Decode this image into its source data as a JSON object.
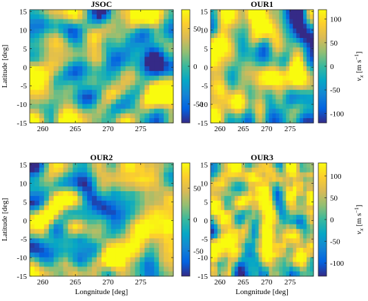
{
  "chart_data": [
    {
      "type": "heatmap",
      "title": "JSOC",
      "xlabel": "",
      "ylabel": "Latitude [deg]",
      "colorbar_label": "v_x [m s^-1]",
      "colorbar_label_parts": {
        "symbol": "v",
        "sub": "x",
        "unit": "[m s",
        "exp": "−1",
        "close": "]"
      },
      "xlim": [
        258,
        280
      ],
      "ylim": [
        -15,
        15.5
      ],
      "xticks": [
        "260",
        "265",
        "270",
        "275"
      ],
      "yticks": [
        "-15",
        "-10",
        "-5",
        "0",
        "5",
        "10",
        "15"
      ],
      "clim": [
        -75,
        75
      ],
      "cbar_ticks": [
        "-50",
        "0",
        "50"
      ],
      "pattern": {
        "seed": 1,
        "smooth": 3,
        "bias": 0.05
      }
    },
    {
      "type": "heatmap",
      "title": "OUR1",
      "xlabel": "",
      "ylabel": "",
      "colorbar_label": "v_x [m s^-1]",
      "colorbar_label_parts": {
        "symbol": "v",
        "sub": "x",
        "unit": "[m s",
        "exp": "−1",
        "close": "]"
      },
      "xlim": [
        258,
        280
      ],
      "ylim": [
        -15,
        15.5
      ],
      "xticks": [
        "260",
        "265",
        "270",
        "275"
      ],
      "yticks": [
        "-15",
        "-10",
        "-5",
        "0",
        "5",
        "10",
        "15"
      ],
      "clim": [
        -120,
        120
      ],
      "cbar_ticks": [
        "-100",
        "-50",
        "0",
        "50",
        "100"
      ],
      "pattern": {
        "seed": 1,
        "smooth": 4,
        "bias": 0.1
      }
    },
    {
      "type": "heatmap",
      "title": "OUR2",
      "xlabel": "Longnitude [deg]",
      "ylabel": "Latitude [deg]",
      "colorbar_label": "v_x [m s^-1]",
      "colorbar_label_parts": {
        "symbol": "v",
        "sub": "x",
        "unit": "[m s",
        "exp": "−1",
        "close": "]"
      },
      "xlim": [
        258,
        280
      ],
      "ylim": [
        -15,
        15.5
      ],
      "xticks": [
        "260",
        "265",
        "270",
        "275"
      ],
      "yticks": [
        "-15",
        "-10",
        "-5",
        "0",
        "5",
        "10",
        "15"
      ],
      "clim": [
        -90,
        90
      ],
      "cbar_ticks": [
        "-50",
        "0",
        "50"
      ],
      "pattern": {
        "seed": 1,
        "smooth": 3,
        "bias": 0.08
      }
    },
    {
      "type": "heatmap",
      "title": "OUR3",
      "xlabel": "Longnitude [deg]",
      "ylabel": "",
      "colorbar_label": "v_x [m s^-1]",
      "colorbar_label_parts": {
        "symbol": "v",
        "sub": "x",
        "unit": "[m s",
        "exp": "−1",
        "close": "]"
      },
      "xlim": [
        258,
        280
      ],
      "ylim": [
        -15,
        15.5
      ],
      "xticks": [
        "260",
        "265",
        "270",
        "275"
      ],
      "yticks": [
        "-15",
        "-10",
        "-5",
        "0",
        "5",
        "10",
        "15"
      ],
      "clim": [
        -130,
        130
      ],
      "cbar_ticks": [
        "-100",
        "-50",
        "0",
        "50",
        "100"
      ],
      "pattern": {
        "seed": 7,
        "smooth": 2,
        "bias": 0.12
      }
    }
  ]
}
